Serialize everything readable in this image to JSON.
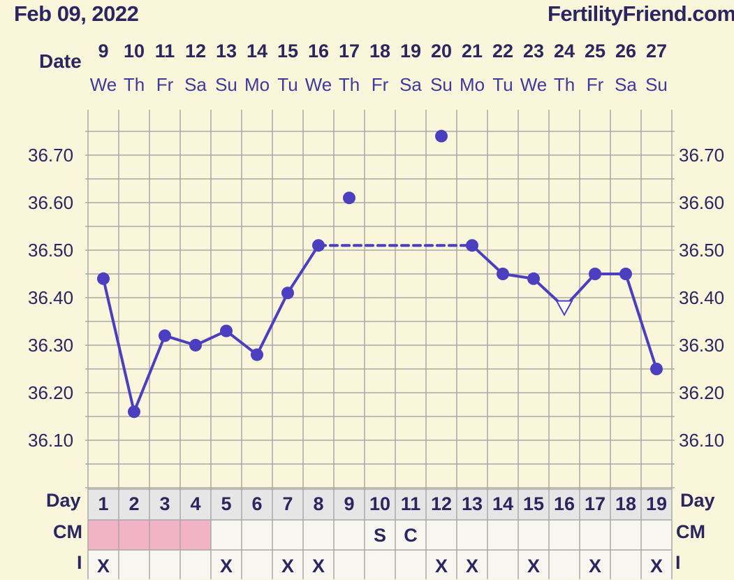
{
  "header": {
    "date_title": "Feb 09, 2022",
    "brand": "FertilityFriend.com"
  },
  "labels": {
    "date": "Date",
    "day": "Day",
    "cm": "CM",
    "i": "I"
  },
  "dates": [
    {
      "num": "9",
      "dow": "We"
    },
    {
      "num": "10",
      "dow": "Th"
    },
    {
      "num": "11",
      "dow": "Fr"
    },
    {
      "num": "12",
      "dow": "Sa"
    },
    {
      "num": "13",
      "dow": "Su"
    },
    {
      "num": "14",
      "dow": "Mo"
    },
    {
      "num": "15",
      "dow": "Tu"
    },
    {
      "num": "16",
      "dow": "We"
    },
    {
      "num": "17",
      "dow": "Th"
    },
    {
      "num": "18",
      "dow": "Fr"
    },
    {
      "num": "19",
      "dow": "Sa"
    },
    {
      "num": "20",
      "dow": "Su"
    },
    {
      "num": "21",
      "dow": "Mo"
    },
    {
      "num": "22",
      "dow": "Tu"
    },
    {
      "num": "23",
      "dow": "We"
    },
    {
      "num": "24",
      "dow": "Th"
    },
    {
      "num": "25",
      "dow": "Fr"
    },
    {
      "num": "26",
      "dow": "Sa"
    },
    {
      "num": "27",
      "dow": "Su"
    }
  ],
  "days": [
    "1",
    "2",
    "3",
    "4",
    "5",
    "6",
    "7",
    "8",
    "9",
    "10",
    "11",
    "12",
    "13",
    "14",
    "15",
    "16",
    "17",
    "18",
    "19"
  ],
  "cm": [
    "",
    "",
    "",
    "",
    "",
    "",
    "",
    "",
    "",
    "S",
    "C",
    "",
    "",
    "",
    "",
    "",
    "",
    "",
    ""
  ],
  "menstruation_days": [
    1,
    2,
    3,
    4
  ],
  "intercourse": [
    "X",
    "",
    "",
    "",
    "X",
    "",
    "X",
    "X",
    "",
    "",
    "",
    "X",
    "X",
    "",
    "X",
    "",
    "X",
    "",
    "X"
  ],
  "colors": {
    "line": "#4b3fbf",
    "grid": "#a8a8a8",
    "period": "#f2b3c6",
    "table_header": "#e6e6e6",
    "table_cell": "#f7f6f0",
    "background": "#f9f6dc"
  },
  "chart_data": {
    "type": "line",
    "title": "",
    "xlabel": "Day",
    "ylabel": "",
    "x": [
      1,
      2,
      3,
      4,
      5,
      6,
      7,
      8,
      9,
      10,
      11,
      12,
      13,
      14,
      15,
      16,
      17,
      18,
      19
    ],
    "ylim": [
      36.03,
      36.8
    ],
    "yticks": [
      "36.10",
      "36.20",
      "36.30",
      "36.40",
      "36.50",
      "36.60",
      "36.70"
    ],
    "grid": true,
    "series": [
      {
        "values": [
          36.44,
          36.16,
          36.32,
          36.3,
          36.33,
          36.28,
          36.41,
          36.51,
          36.61,
          null,
          null,
          36.74,
          36.51,
          36.45,
          36.44,
          36.38,
          36.45,
          36.45,
          36.25
        ],
        "discarded_days": [
          9,
          12
        ],
        "open_marker_days": [
          16
        ],
        "dashed_gap": [
          8,
          13
        ]
      }
    ]
  }
}
